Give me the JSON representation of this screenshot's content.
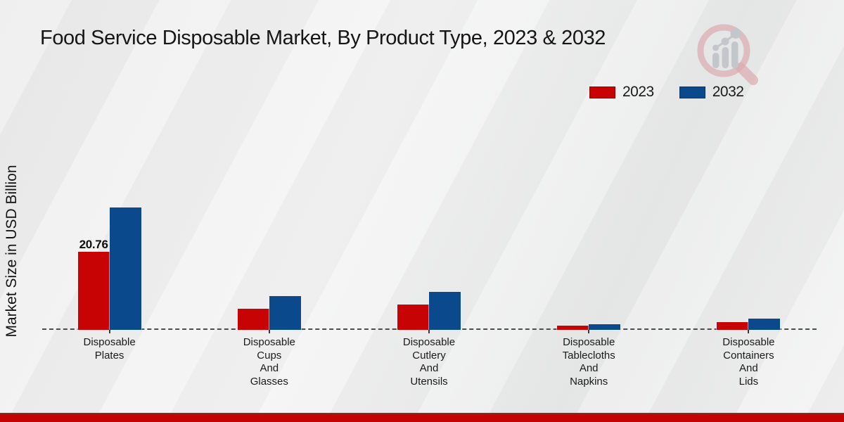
{
  "title": "Food Service Disposable Market, By Product Type, 2023 & 2032",
  "y_axis_label": "Market Size in USD Billion",
  "legend": [
    {
      "label": "2023",
      "color": "#c80304"
    },
    {
      "label": "2032",
      "color": "#0a4a8c"
    }
  ],
  "colors": {
    "series_2023": "#c80304",
    "series_2032": "#0a4a8c",
    "footer_bar": "#c40404",
    "axis_line": "#4d4d4d",
    "background": "#efefef"
  },
  "watermark": {
    "icon": "magnifier-bar-chart-logo"
  },
  "chart_data": {
    "type": "bar",
    "title": "Food Service Disposable Market, By Product Type, 2023 & 2032",
    "xlabel": "",
    "ylabel": "Market Size in USD Billion",
    "categories": [
      "Disposable Plates",
      "Disposable Cups And Glasses",
      "Disposable Cutlery And Utensils",
      "Disposable Tablecloths And Napkins",
      "Disposable Containers And Lids"
    ],
    "category_lines": [
      [
        "Disposable",
        "Plates"
      ],
      [
        "Disposable",
        "Cups",
        "And",
        "Glasses"
      ],
      [
        "Disposable",
        "Cutlery",
        "And",
        "Utensils"
      ],
      [
        "Disposable",
        "Tablecloths",
        "And",
        "Napkins"
      ],
      [
        "Disposable",
        "Containers",
        "And",
        "Lids"
      ]
    ],
    "series": [
      {
        "name": "2023",
        "color": "#c80304",
        "values": [
          20.76,
          5.6,
          6.7,
          1.1,
          2.1
        ]
      },
      {
        "name": "2032",
        "color": "#0a4a8c",
        "values": [
          32.5,
          9.0,
          10.1,
          1.5,
          3.0
        ]
      }
    ],
    "annotations": [
      {
        "series_index": 0,
        "category_index": 0,
        "text": "20.76"
      }
    ],
    "ylim": [
      0,
      35
    ],
    "grid": false,
    "legend_position": "top-right",
    "baseline_style": "dashed"
  }
}
